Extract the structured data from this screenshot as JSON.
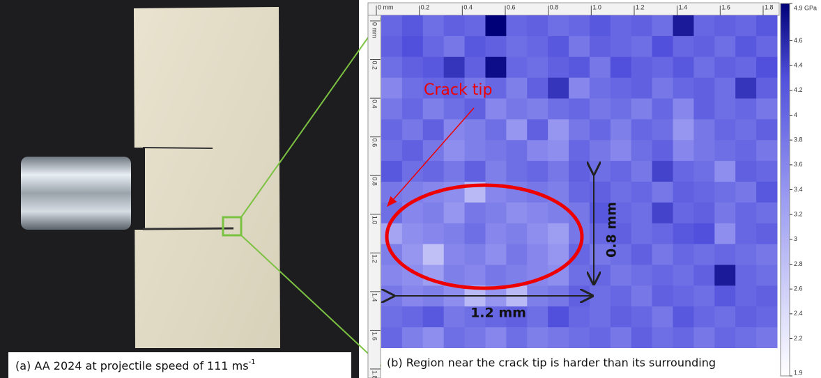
{
  "photo_panel": {
    "caption": "(a) AA 2024 at projectile speed of 111 ms",
    "caption_sup": "-1"
  },
  "hardness_map": {
    "x_ticks": [
      {
        "value": 0,
        "label": "0 mm"
      },
      0.2,
      0.4,
      0.6,
      0.8,
      {
        "value": 1,
        "label": "1.0"
      },
      1.2,
      1.4,
      1.6,
      1.8
    ],
    "y_ticks": [
      {
        "value": 0,
        "label": "0 mm"
      },
      0.2,
      0.4,
      0.6,
      0.8,
      {
        "value": 1,
        "label": "1.0"
      },
      1.2,
      1.4,
      1.6,
      1.8
    ],
    "colorbar": {
      "lim": [
        1.9,
        4.9
      ],
      "ticks": [
        {
          "value": 4.9,
          "label": "4.9 GPa"
        },
        4.6,
        4.4,
        4.2,
        4.0,
        3.8,
        3.6,
        3.4,
        3.2,
        3.0,
        2.8,
        2.6,
        2.4,
        2.2,
        1.9
      ]
    },
    "values": [
      [
        4.0,
        4.2,
        3.9,
        4.1,
        4.0,
        4.9,
        4.0,
        4.1,
        3.9,
        4.0,
        4.2,
        4.0,
        4.1,
        3.9,
        4.7,
        4.0,
        4.1,
        4.0,
        4.2
      ],
      [
        4.1,
        4.3,
        4.0,
        3.8,
        4.2,
        4.1,
        3.9,
        4.0,
        4.2,
        3.8,
        4.1,
        4.0,
        3.9,
        4.3,
        4.0,
        4.1,
        3.9,
        4.2,
        4.0
      ],
      [
        3.9,
        4.1,
        4.2,
        4.5,
        4.1,
        4.8,
        4.0,
        3.9,
        4.1,
        4.2,
        3.8,
        4.3,
        4.1,
        4.0,
        4.2,
        3.9,
        4.1,
        4.0,
        4.3
      ],
      [
        3.6,
        3.9,
        4.0,
        4.1,
        3.8,
        4.0,
        3.7,
        4.1,
        4.5,
        3.6,
        3.9,
        4.0,
        4.1,
        3.8,
        4.0,
        4.1,
        3.9,
        4.5,
        4.1
      ],
      [
        3.8,
        4.0,
        3.7,
        3.9,
        4.1,
        3.6,
        3.8,
        3.7,
        3.9,
        4.0,
        3.8,
        3.9,
        3.7,
        4.0,
        3.6,
        4.1,
        3.9,
        4.0,
        3.8
      ],
      [
        4.0,
        3.8,
        4.1,
        3.6,
        3.7,
        3.9,
        3.4,
        4.1,
        3.4,
        3.8,
        4.0,
        3.7,
        4.0,
        3.9,
        3.4,
        3.8,
        4.0,
        3.9,
        4.1
      ],
      [
        3.9,
        4.1,
        3.8,
        3.5,
        3.7,
        3.8,
        3.9,
        3.6,
        3.5,
        4.0,
        3.8,
        3.6,
        3.9,
        4.1,
        3.6,
        3.8,
        3.9,
        4.0,
        3.8
      ],
      [
        4.2,
        3.9,
        4.0,
        3.8,
        4.1,
        3.7,
        3.9,
        4.0,
        3.8,
        4.1,
        3.9,
        4.0,
        3.8,
        4.4,
        4.0,
        3.9,
        3.5,
        4.1,
        4.0
      ],
      [
        3.8,
        3.7,
        3.6,
        3.5,
        2.9,
        3.6,
        3.7,
        3.8,
        3.7,
        4.0,
        4.1,
        3.9,
        4.0,
        3.8,
        4.1,
        4.0,
        3.9,
        3.8,
        4.2
      ],
      [
        3.9,
        3.6,
        3.7,
        3.4,
        3.8,
        3.7,
        3.5,
        3.6,
        3.7,
        3.8,
        4.2,
        4.0,
        3.9,
        4.4,
        4.0,
        4.1,
        3.8,
        4.0,
        3.9
      ],
      [
        3.2,
        3.5,
        3.6,
        3.7,
        3.9,
        3.6,
        3.7,
        3.5,
        3.3,
        3.8,
        4.0,
        4.1,
        3.9,
        4.0,
        4.2,
        4.3,
        3.5,
        4.0,
        4.1
      ],
      [
        3.7,
        3.4,
        2.8,
        3.6,
        3.7,
        3.5,
        3.8,
        3.6,
        3.4,
        4.0,
        3.8,
        3.9,
        4.1,
        3.8,
        4.0,
        3.9,
        4.0,
        3.9,
        3.8
      ],
      [
        3.6,
        3.5,
        3.3,
        3.7,
        3.6,
        3.8,
        3.7,
        3.6,
        3.5,
        3.9,
        4.0,
        3.8,
        3.9,
        4.0,
        3.9,
        4.1,
        4.7,
        4.0,
        3.9
      ],
      [
        3.8,
        3.6,
        3.7,
        3.5,
        2.9,
        3.4,
        2.9,
        3.7,
        3.8,
        4.1,
        3.9,
        4.0,
        3.8,
        4.1,
        4.0,
        3.9,
        4.2,
        4.0,
        4.1
      ],
      [
        3.9,
        4.0,
        4.2,
        3.8,
        3.9,
        4.0,
        4.1,
        3.9,
        4.3,
        4.0,
        3.9,
        4.1,
        4.0,
        3.8,
        4.2,
        4.0,
        3.9,
        4.1,
        4.0
      ],
      [
        4.0,
        3.7,
        3.5,
        3.9,
        3.8,
        3.6,
        3.9,
        3.7,
        3.8,
        3.9,
        4.0,
        3.8,
        4.1,
        3.9,
        4.0,
        3.8,
        4.0,
        3.9,
        3.8
      ]
    ],
    "annotations": {
      "crack_tip": "Crack tip",
      "width": "1.2 mm",
      "height": "0.8 mm"
    },
    "caption": "(b) Region  near the crack tip is harder than its surrounding"
  }
}
